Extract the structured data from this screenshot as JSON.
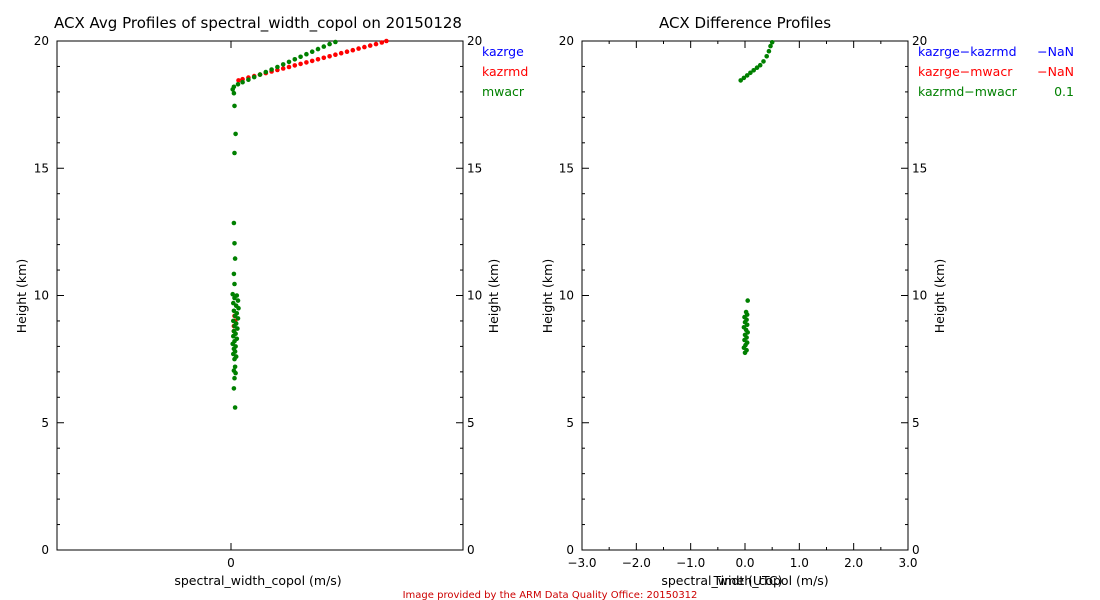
{
  "credit": "Image provided by the ARM Data Quality Office: 20150312",
  "chart_data": [
    {
      "type": "scatter",
      "title": "ACX Avg Profiles of spectral_width_copol on 20150128",
      "xlabel": "spectral_width_copol (m/s)",
      "ylabel": "Height (km)",
      "ylabel_right": "Height (km)",
      "xlim": [
        -3,
        4
      ],
      "ylim": [
        0,
        20
      ],
      "xticks": [
        0
      ],
      "yticks": [
        0,
        5,
        10,
        15,
        20
      ],
      "legend": {
        "placement": "top-right",
        "items": [
          "kazrge",
          "kazrmd",
          "mwacr"
        ]
      },
      "series": [
        {
          "name": "kazrge",
          "color": "#0000ff",
          "points": []
        },
        {
          "name": "kazrmd",
          "color": "#ff0000",
          "points": [
            [
              0.13,
              18.45
            ],
            [
              0.2,
              18.5
            ],
            [
              0.3,
              18.56
            ],
            [
              0.4,
              18.62
            ],
            [
              0.5,
              18.68
            ],
            [
              0.6,
              18.74
            ],
            [
              0.7,
              18.8
            ],
            [
              0.8,
              18.86
            ],
            [
              0.9,
              18.92
            ],
            [
              1.0,
              18.98
            ],
            [
              1.1,
              19.04
            ],
            [
              1.2,
              19.1
            ],
            [
              1.3,
              19.16
            ],
            [
              1.4,
              19.22
            ],
            [
              1.5,
              19.28
            ],
            [
              1.6,
              19.34
            ],
            [
              1.7,
              19.4
            ],
            [
              1.8,
              19.46
            ],
            [
              1.9,
              19.52
            ],
            [
              2.0,
              19.58
            ],
            [
              2.1,
              19.64
            ],
            [
              2.2,
              19.7
            ],
            [
              2.3,
              19.76
            ],
            [
              2.4,
              19.82
            ],
            [
              2.5,
              19.88
            ],
            [
              2.6,
              19.94
            ],
            [
              2.68,
              20.0
            ],
            [
              0.05,
              8.8
            ],
            [
              0.07,
              9.0
            ],
            [
              0.06,
              9.2
            ],
            [
              0.05,
              8.6
            ]
          ]
        },
        {
          "name": "mwacr",
          "color": "#008000",
          "points": [
            [
              0.05,
              18.2
            ],
            [
              0.12,
              18.3
            ],
            [
              0.2,
              18.38
            ],
            [
              0.3,
              18.48
            ],
            [
              0.4,
              18.58
            ],
            [
              0.5,
              18.68
            ],
            [
              0.6,
              18.78
            ],
            [
              0.7,
              18.88
            ],
            [
              0.8,
              18.98
            ],
            [
              0.9,
              19.08
            ],
            [
              1.0,
              19.18
            ],
            [
              1.1,
              19.28
            ],
            [
              1.2,
              19.38
            ],
            [
              1.3,
              19.48
            ],
            [
              1.4,
              19.58
            ],
            [
              1.5,
              19.68
            ],
            [
              1.6,
              19.78
            ],
            [
              1.7,
              19.88
            ],
            [
              1.8,
              19.96
            ],
            [
              0.03,
              18.1
            ],
            [
              0.05,
              17.95
            ],
            [
              0.06,
              17.45
            ],
            [
              0.08,
              16.35
            ],
            [
              0.06,
              15.6
            ],
            [
              0.05,
              12.85
            ],
            [
              0.06,
              12.05
            ],
            [
              0.07,
              11.45
            ],
            [
              0.05,
              10.85
            ],
            [
              0.06,
              10.45
            ],
            [
              0.03,
              10.05
            ],
            [
              0.1,
              10.0
            ],
            [
              0.06,
              9.9
            ],
            [
              0.12,
              9.8
            ],
            [
              0.04,
              9.7
            ],
            [
              0.09,
              9.6
            ],
            [
              0.13,
              9.5
            ],
            [
              0.05,
              9.4
            ],
            [
              0.1,
              9.3
            ],
            [
              0.07,
              9.2
            ],
            [
              0.12,
              9.1
            ],
            [
              0.04,
              9.0
            ],
            [
              0.09,
              8.9
            ],
            [
              0.06,
              8.8
            ],
            [
              0.11,
              8.7
            ],
            [
              0.05,
              8.6
            ],
            [
              0.08,
              8.5
            ],
            [
              0.04,
              8.4
            ],
            [
              0.1,
              8.3
            ],
            [
              0.06,
              8.2
            ],
            [
              0.03,
              8.1
            ],
            [
              0.08,
              8.0
            ],
            [
              0.05,
              7.9
            ],
            [
              0.07,
              7.8
            ],
            [
              0.04,
              7.7
            ],
            [
              0.09,
              7.6
            ],
            [
              0.06,
              7.5
            ],
            [
              0.07,
              7.2
            ],
            [
              0.05,
              7.05
            ],
            [
              0.08,
              6.95
            ],
            [
              0.06,
              6.75
            ],
            [
              0.05,
              6.35
            ],
            [
              0.07,
              5.6
            ]
          ]
        }
      ]
    },
    {
      "type": "scatter",
      "title": "ACX Difference Profiles",
      "xlabel": "spectral_width_copol (m/s)",
      "xlabel_overprint": "Time (UTC)",
      "ylabel": "Height (km)",
      "ylabel_right": "Height (km)",
      "xlim": [
        -3,
        3
      ],
      "ylim": [
        0,
        20
      ],
      "xticks": [
        -3,
        -2,
        -1,
        0,
        1,
        2,
        3
      ],
      "xtick_labels": [
        "−3.0",
        "−2.0",
        "−1.0",
        "0.0",
        "1.0",
        "2.0",
        "3.0"
      ],
      "yticks": [
        0,
        5,
        10,
        15,
        20
      ],
      "legend": {
        "placement": "top-right",
        "items": [
          {
            "label": "kazrge−kazrmd",
            "value": "−NaN",
            "color": "#0000ff"
          },
          {
            "label": "kazrge−mwacr",
            "value": "−NaN",
            "color": "#ff0000"
          },
          {
            "label": "kazrmd−mwacr",
            "value": "0.1",
            "color": "#008000"
          }
        ]
      },
      "series": [
        {
          "name": "kazrmd−mwacr",
          "color": "#008000",
          "points": [
            [
              -0.08,
              18.45
            ],
            [
              -0.02,
              18.55
            ],
            [
              0.04,
              18.65
            ],
            [
              0.1,
              18.75
            ],
            [
              0.16,
              18.85
            ],
            [
              0.22,
              18.95
            ],
            [
              0.28,
              19.05
            ],
            [
              0.34,
              19.2
            ],
            [
              0.4,
              19.4
            ],
            [
              0.44,
              19.6
            ],
            [
              0.47,
              19.8
            ],
            [
              0.5,
              19.95
            ],
            [
              0.05,
              9.8
            ],
            [
              0.02,
              9.35
            ],
            [
              0.04,
              9.25
            ],
            [
              -0.01,
              9.15
            ],
            [
              0.03,
              9.05
            ],
            [
              0.0,
              8.95
            ],
            [
              0.04,
              8.85
            ],
            [
              -0.02,
              8.75
            ],
            [
              0.02,
              8.65
            ],
            [
              0.05,
              8.55
            ],
            [
              0.0,
              8.45
            ],
            [
              0.03,
              8.35
            ],
            [
              -0.01,
              8.25
            ],
            [
              0.04,
              8.15
            ],
            [
              0.01,
              8.05
            ],
            [
              -0.02,
              7.95
            ],
            [
              0.03,
              7.85
            ],
            [
              0.0,
              7.75
            ]
          ]
        }
      ]
    }
  ]
}
